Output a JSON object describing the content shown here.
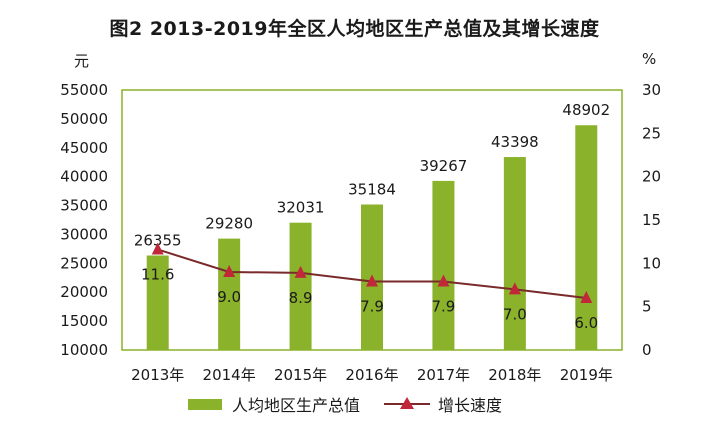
{
  "chart_data": {
    "type": "bar",
    "title": "图2 2013-2019年全区人均地区生产总值及其增长速度",
    "categories": [
      "2013年",
      "2014年",
      "2015年",
      "2016年",
      "2017年",
      "2018年",
      "2019年"
    ],
    "series": [
      {
        "name": "人均地区生产总值",
        "type": "bar",
        "axis": "left",
        "values": [
          26355,
          29280,
          32031,
          35184,
          39267,
          43398,
          48902
        ]
      },
      {
        "name": "增长速度",
        "type": "line",
        "axis": "right",
        "values": [
          11.6,
          9.0,
          8.9,
          7.9,
          7.9,
          7.0,
          6.0
        ]
      }
    ],
    "y_left": {
      "label": "元",
      "ylim": [
        10000,
        55000
      ],
      "ticks": [
        10000,
        15000,
        20000,
        25000,
        30000,
        35000,
        40000,
        45000,
        50000,
        55000
      ]
    },
    "y_right": {
      "label": "%",
      "ylim": [
        0,
        30
      ],
      "ticks": [
        0,
        5,
        10,
        15,
        20,
        25,
        30
      ]
    },
    "bar_labels": [
      "26355",
      "29280",
      "32031",
      "35184",
      "39267",
      "43398",
      "48902"
    ],
    "line_labels": [
      "11.6",
      "9.0",
      "8.9",
      "7.9",
      "7.9",
      "7.0",
      "6.0"
    ],
    "legend_position": "bottom",
    "colors": {
      "bar": "#8bb22b",
      "line": "#7a2a2a",
      "marker": "#c0283a",
      "plot_border": "#8bb22b"
    }
  }
}
